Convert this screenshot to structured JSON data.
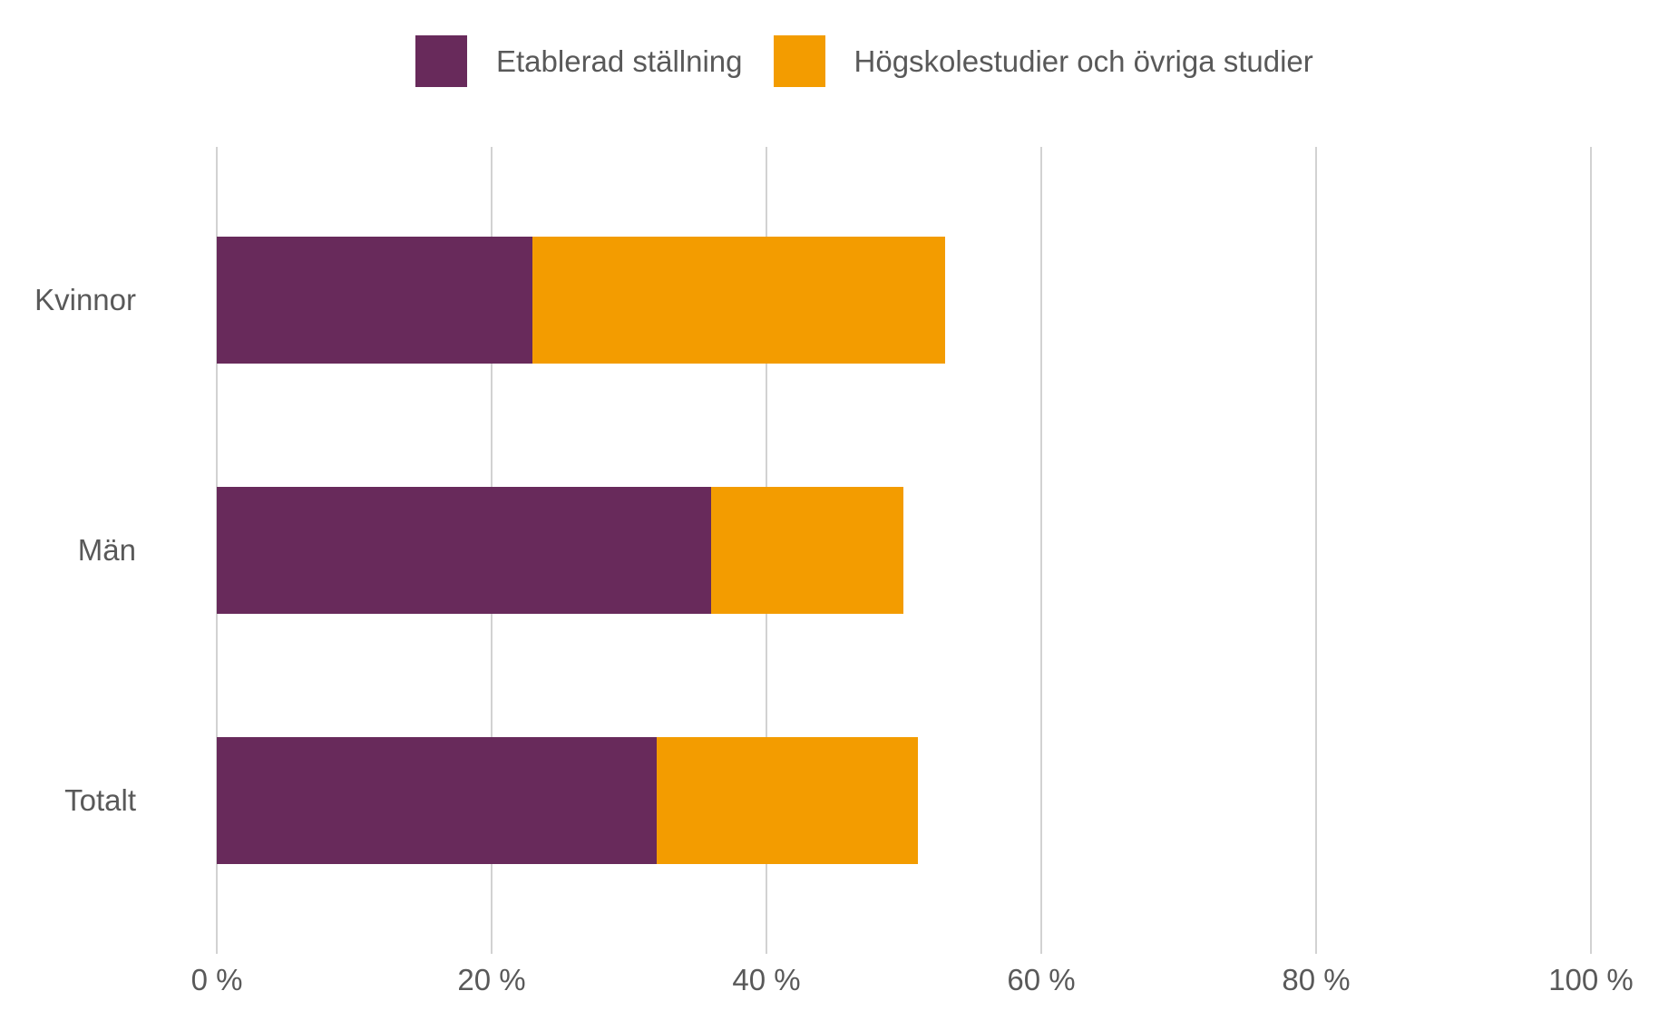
{
  "chart_data": {
    "type": "bar",
    "orientation": "horizontal",
    "stacked": true,
    "title": "",
    "xlabel": "",
    "ylabel": "",
    "categories": [
      "Kvinnor",
      "Män",
      "Totalt"
    ],
    "series": [
      {
        "name": "Etablerad ställning",
        "color": "#682A5B",
        "values": [
          23,
          36,
          32
        ]
      },
      {
        "name": "Högskolestudier och övriga studier",
        "color": "#F39C00",
        "values": [
          30,
          14,
          19
        ]
      }
    ],
    "totals": [
      53,
      50,
      51
    ],
    "xlim": [
      0,
      100
    ],
    "x_ticks": [
      0,
      20,
      40,
      60,
      80,
      100
    ],
    "x_tick_labels": [
      "0 %",
      "20 %",
      "40 %",
      "60 %",
      "80 %",
      "100 %"
    ],
    "grid": true,
    "legend_position": "top"
  },
  "colors": {
    "background": "#ffffff",
    "gridline": "#d2d2d2",
    "text": "#595959",
    "series_purple": "#682A5B",
    "series_orange": "#F39C00"
  }
}
